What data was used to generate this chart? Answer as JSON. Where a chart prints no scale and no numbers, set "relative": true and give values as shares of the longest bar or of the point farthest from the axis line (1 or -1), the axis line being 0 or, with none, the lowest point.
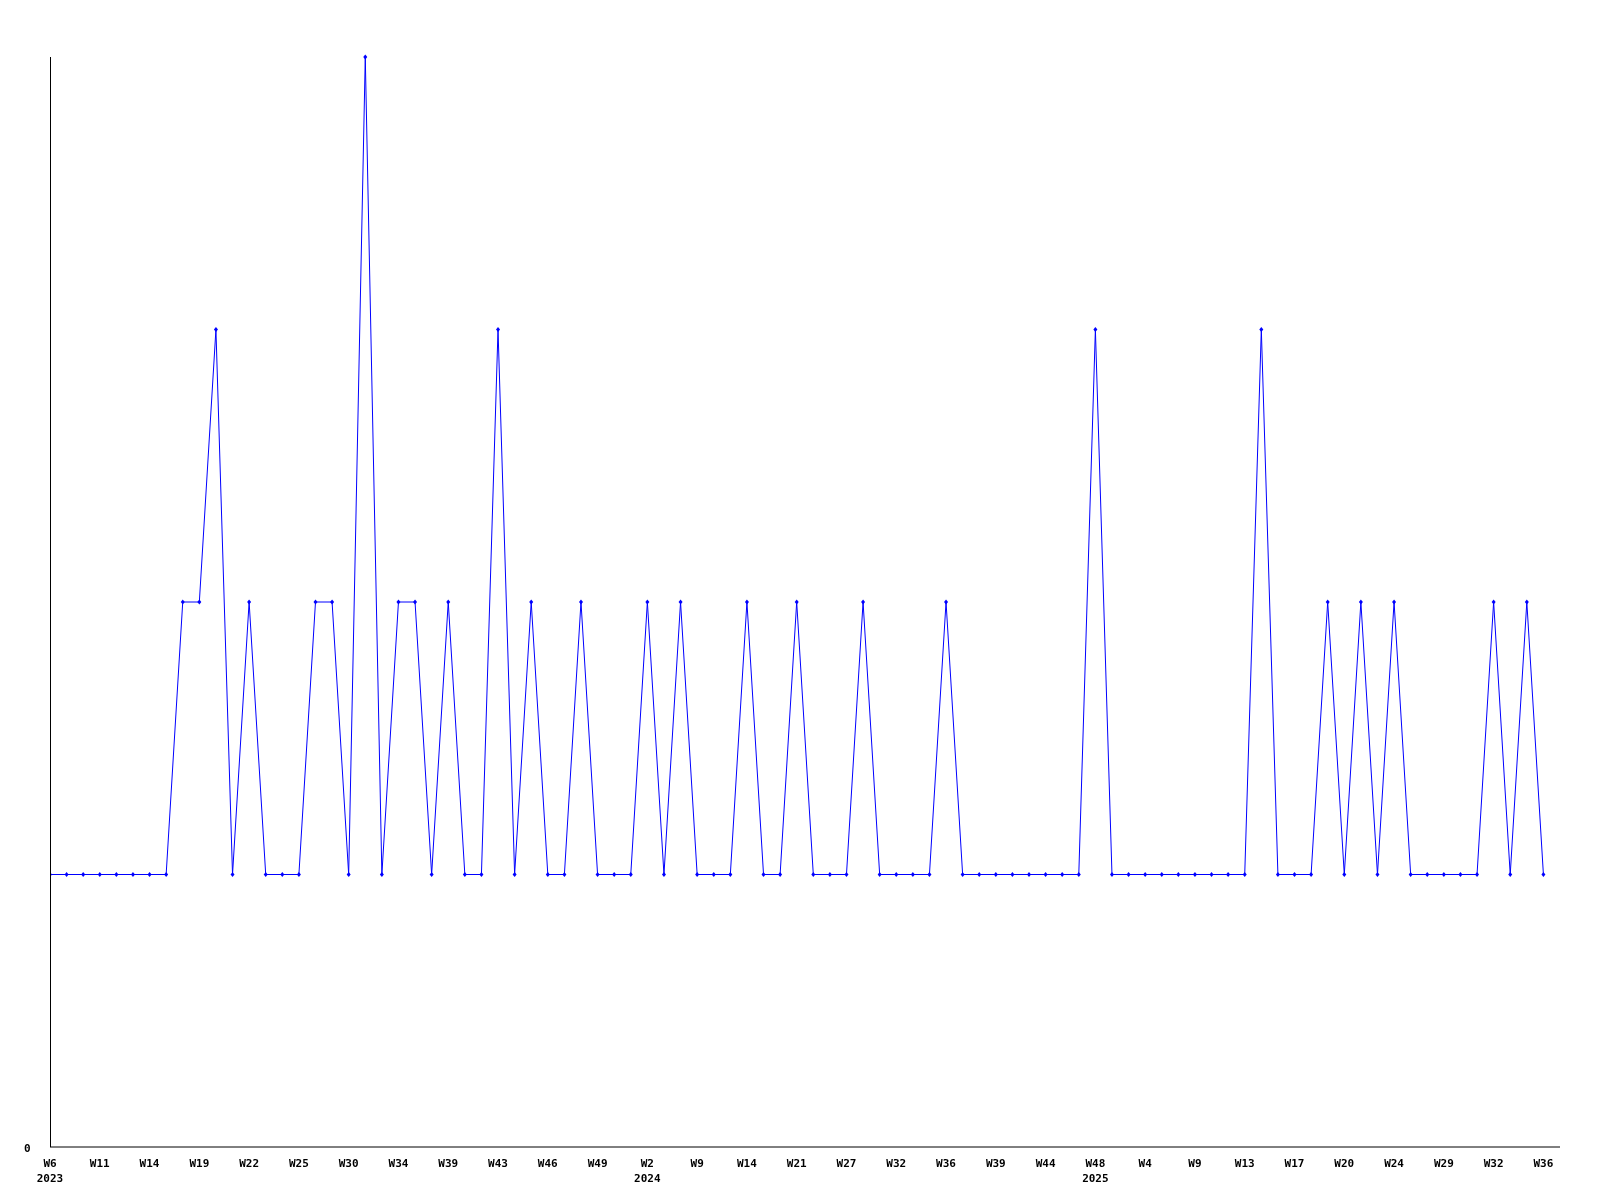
{
  "chart_data": {
    "type": "line",
    "relative": true,
    "color": "#0000ff",
    "marker": "diamond",
    "line_style": "solid",
    "categories": [
      "W6\n2023",
      null,
      null,
      "W11",
      null,
      null,
      "W14",
      null,
      null,
      "W19",
      null,
      null,
      "W22",
      null,
      null,
      "W25",
      null,
      null,
      "W30",
      null,
      null,
      "W34",
      null,
      null,
      "W39",
      null,
      null,
      "W43",
      null,
      null,
      "W46",
      null,
      null,
      "W49",
      null,
      null,
      "W2\n2024",
      null,
      null,
      "W9",
      null,
      null,
      "W14",
      null,
      null,
      "W21",
      null,
      null,
      "W27",
      null,
      null,
      "W32",
      null,
      null,
      "W36",
      null,
      null,
      "W39",
      null,
      null,
      "W44",
      null,
      null,
      "W48\n2025",
      null,
      null,
      "W4",
      null,
      null,
      "W9",
      null,
      null,
      "W13",
      null,
      null,
      "W17",
      null,
      null,
      "W20",
      null,
      null,
      "W24",
      null,
      null,
      "W29",
      null,
      null,
      "W32",
      null,
      null,
      "W36"
    ],
    "values": [
      0.25,
      0.25,
      0.25,
      0.25,
      0.25,
      0.25,
      0.25,
      0.25,
      0.5,
      0.5,
      0.75,
      0.25,
      0.5,
      0.25,
      0.25,
      0.25,
      0.5,
      0.5,
      0.25,
      1,
      0.25,
      0.5,
      0.5,
      0.25,
      0.5,
      0.25,
      0.25,
      0.75,
      0.25,
      0.5,
      0.25,
      0.25,
      0.5,
      0.25,
      0.25,
      0.25,
      0.5,
      0.25,
      0.5,
      0.25,
      0.25,
      0.25,
      0.5,
      0.25,
      0.25,
      0.5,
      0.25,
      0.25,
      0.25,
      0.5,
      0.25,
      0.25,
      0.25,
      0.25,
      0.5,
      0.25,
      0.25,
      0.25,
      0.25,
      0.25,
      0.25,
      0.25,
      0.25,
      0.75,
      0.25,
      0.25,
      0.25,
      0.25,
      0.25,
      0.25,
      0.25,
      0.25,
      0.25,
      0.75,
      0.25,
      0.25,
      0.25,
      0.5,
      0.25,
      0.5,
      0.25,
      0.5,
      0.25,
      0.25,
      0.25,
      0.25,
      0.25,
      0.5,
      0.25,
      0.5,
      0.25
    ],
    "annotations": [
      "0"
    ]
  }
}
